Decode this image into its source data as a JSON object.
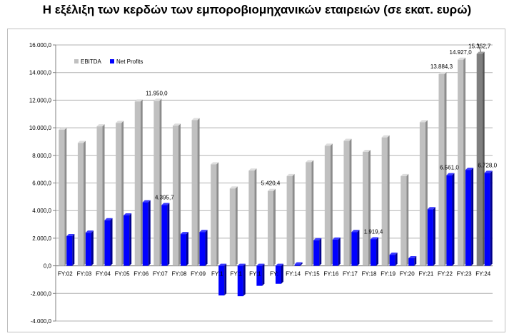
{
  "chart_data": {
    "type": "bar",
    "title": "Η εξέλιξη των κερδών των εμποροβιομηχανικών εταιρειών (σε εκατ. ευρώ)",
    "categories": [
      "FY:02",
      "FY:03",
      "FY:04",
      "FY:05",
      "FY:06",
      "FY:07",
      "FY:08",
      "FY:09",
      "FY:10",
      "FY:11",
      "FY:12",
      "FY:13",
      "FY:14",
      "FY:15",
      "FY:16",
      "FY:17",
      "FY:18",
      "FY:19",
      "FY:20",
      "FY:21",
      "FY:22",
      "FY:23",
      "FY:24"
    ],
    "category_labels_shown": [
      "FY:02",
      "FY:03",
      "FY:04",
      "FY:05",
      "FY:06",
      "FY:07",
      "FY:08",
      "FY:09",
      "FY:1",
      "FY:1",
      "FY:1",
      "FY:",
      "FY:14",
      "FY:15",
      "FY:16",
      "FY:17",
      "FY:18",
      "FY:19",
      "FY:20",
      "FY:21",
      "FY:22",
      "FY:23",
      "FY:24"
    ],
    "series": [
      {
        "name": "EBITDA",
        "color": "#c0c0c0",
        "values": [
          9850,
          8900,
          10100,
          10350,
          11900,
          11950,
          10150,
          10550,
          7350,
          5600,
          6900,
          5420.4,
          6500,
          7500,
          8700,
          9050,
          8250,
          9300,
          6500,
          10400,
          13884.3,
          14927.0,
          15352.7
        ]
      },
      {
        "name": "Net Profits",
        "color": "#0000ff",
        "values": [
          2150,
          2400,
          3300,
          3650,
          4600,
          4395.7,
          2300,
          2450,
          -2150,
          -2200,
          -1450,
          -1300,
          100,
          1850,
          1900,
          2450,
          1919.4,
          800,
          550,
          4100,
          6561.0,
          6950,
          6728.0
        ]
      }
    ],
    "highlight_last_ebitda_color": "#7f7f7f",
    "data_labels": [
      {
        "series": 0,
        "index": 5,
        "text": "11.950,0"
      },
      {
        "series": 1,
        "index": 5,
        "text": "4.395,7"
      },
      {
        "series": 0,
        "index": 11,
        "text": "5.420,4"
      },
      {
        "series": 1,
        "index": 16,
        "text": "1.919,4"
      },
      {
        "series": 0,
        "index": 20,
        "text": "13.884,3"
      },
      {
        "series": 1,
        "index": 20,
        "text": "6.561,0"
      },
      {
        "series": 0,
        "index": 21,
        "text": "14.927,0"
      },
      {
        "series": 0,
        "index": 22,
        "text": "15.352,7"
      },
      {
        "series": 1,
        "index": 22,
        "text": "6.728,0"
      }
    ],
    "ylim": [
      -4000,
      16000
    ],
    "yticks": [
      -4000,
      -2000,
      0,
      2000,
      4000,
      6000,
      8000,
      10000,
      12000,
      14000,
      16000
    ],
    "ytick_labels": [
      "-4.000,0",
      "-2.000,0",
      "0,0",
      "2.000,0",
      "4.000,0",
      "6.000,0",
      "8.000,0",
      "10.000,0",
      "12.000,0",
      "14.000,0",
      "16.000,0"
    ],
    "xlabel": "",
    "ylabel": "",
    "grid": true,
    "legend_position": "top-left"
  }
}
